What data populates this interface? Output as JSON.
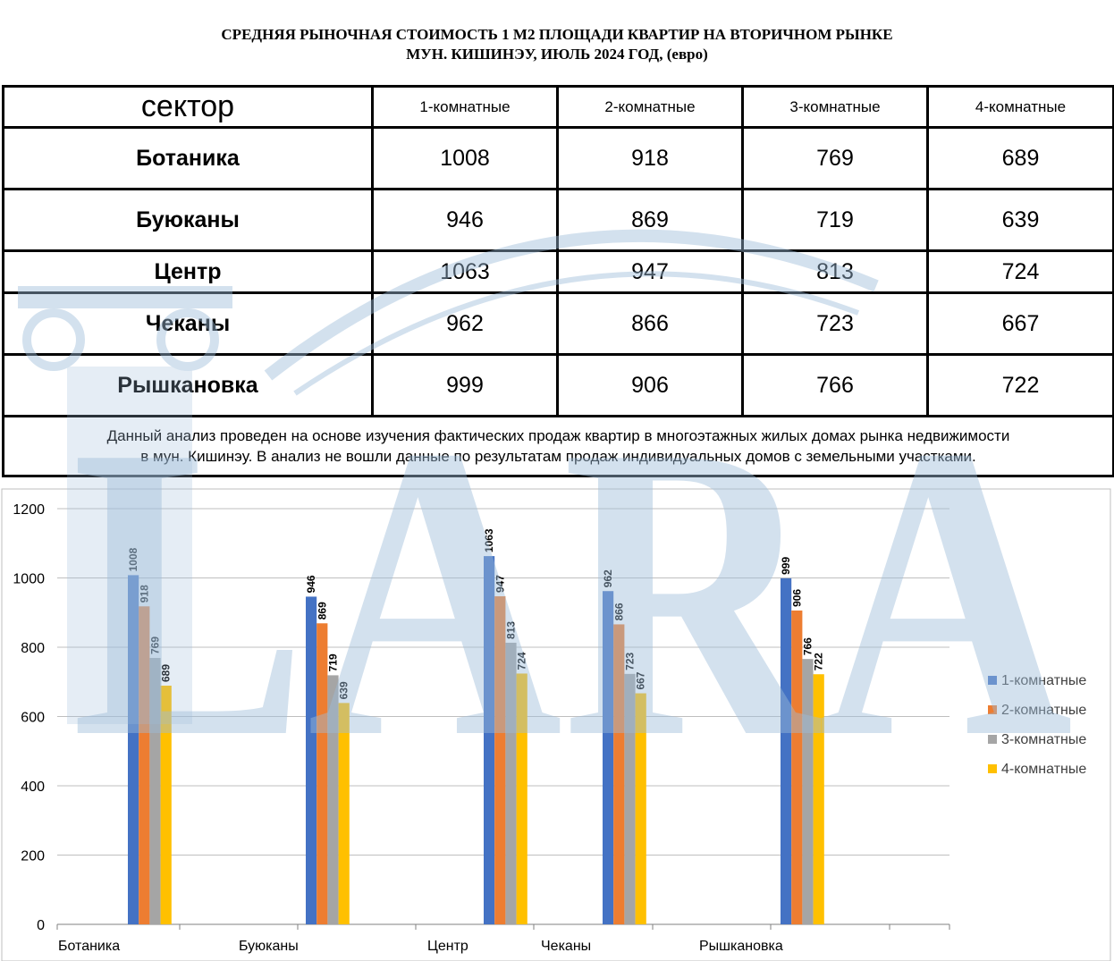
{
  "title": {
    "line1": "СРЕДНЯЯ  РЫНОЧНАЯ  СТОИМОСТЬ  1 М2  ПЛОЩАДИ  КВАРТИР НА ВТОРИЧНОМ РЫНКЕ",
    "line2": "МУН.  КИШИНЭУ, ИЮЛЬ  2024 ГОД, (евро)"
  },
  "table": {
    "header": [
      "сектор",
      "1-комнатные",
      "2-комнатные",
      "3-комнатные",
      "4-комнатные"
    ],
    "rows": [
      {
        "sector": "Ботаника",
        "values": [
          "1008",
          "918",
          "769",
          "689"
        ]
      },
      {
        "sector": "Буюканы",
        "values": [
          "946",
          "869",
          "719",
          "639"
        ]
      },
      {
        "sector": "Центр",
        "values": [
          "1063",
          "947",
          "813",
          "724"
        ]
      },
      {
        "sector": "Чеканы",
        "values": [
          "962",
          "866",
          "723",
          "667"
        ]
      },
      {
        "sector": "Рышкановка",
        "values": [
          "999",
          "906",
          "766",
          "722"
        ]
      }
    ],
    "note_line1": "Данный анализ проведен на основе изучения фактических продаж квартир в многоэтажных жилых домах рынка недвижимости",
    "note_line2": "в мун. Кишинэу. В анализ не вошли данные по результатам  продаж индивидуальных домов с земельными участками."
  },
  "watermark": {
    "text": "LARA",
    "color": "#9dbcd9"
  },
  "chart_data": {
    "type": "bar",
    "categories": [
      "Ботаника",
      "Буюканы",
      "Центр",
      "Чеканы",
      "Рышкановка"
    ],
    "series": [
      {
        "name": "1-комнатные",
        "color": "#4472c4",
        "values": [
          1008,
          946,
          1063,
          962,
          999
        ]
      },
      {
        "name": "2-комнатные",
        "color": "#ed7d31",
        "values": [
          918,
          869,
          947,
          866,
          906
        ]
      },
      {
        "name": "3-комнатные",
        "color": "#a5a5a5",
        "values": [
          769,
          719,
          813,
          723,
          766
        ]
      },
      {
        "name": "4-комнатные",
        "color": "#ffc000",
        "values": [
          689,
          639,
          724,
          667,
          722
        ]
      }
    ],
    "ylim": [
      0,
      1200
    ],
    "yticks": [
      0,
      200,
      400,
      600,
      800,
      1000,
      1200
    ],
    "grid": true,
    "legend": "right",
    "data_labels": true
  }
}
